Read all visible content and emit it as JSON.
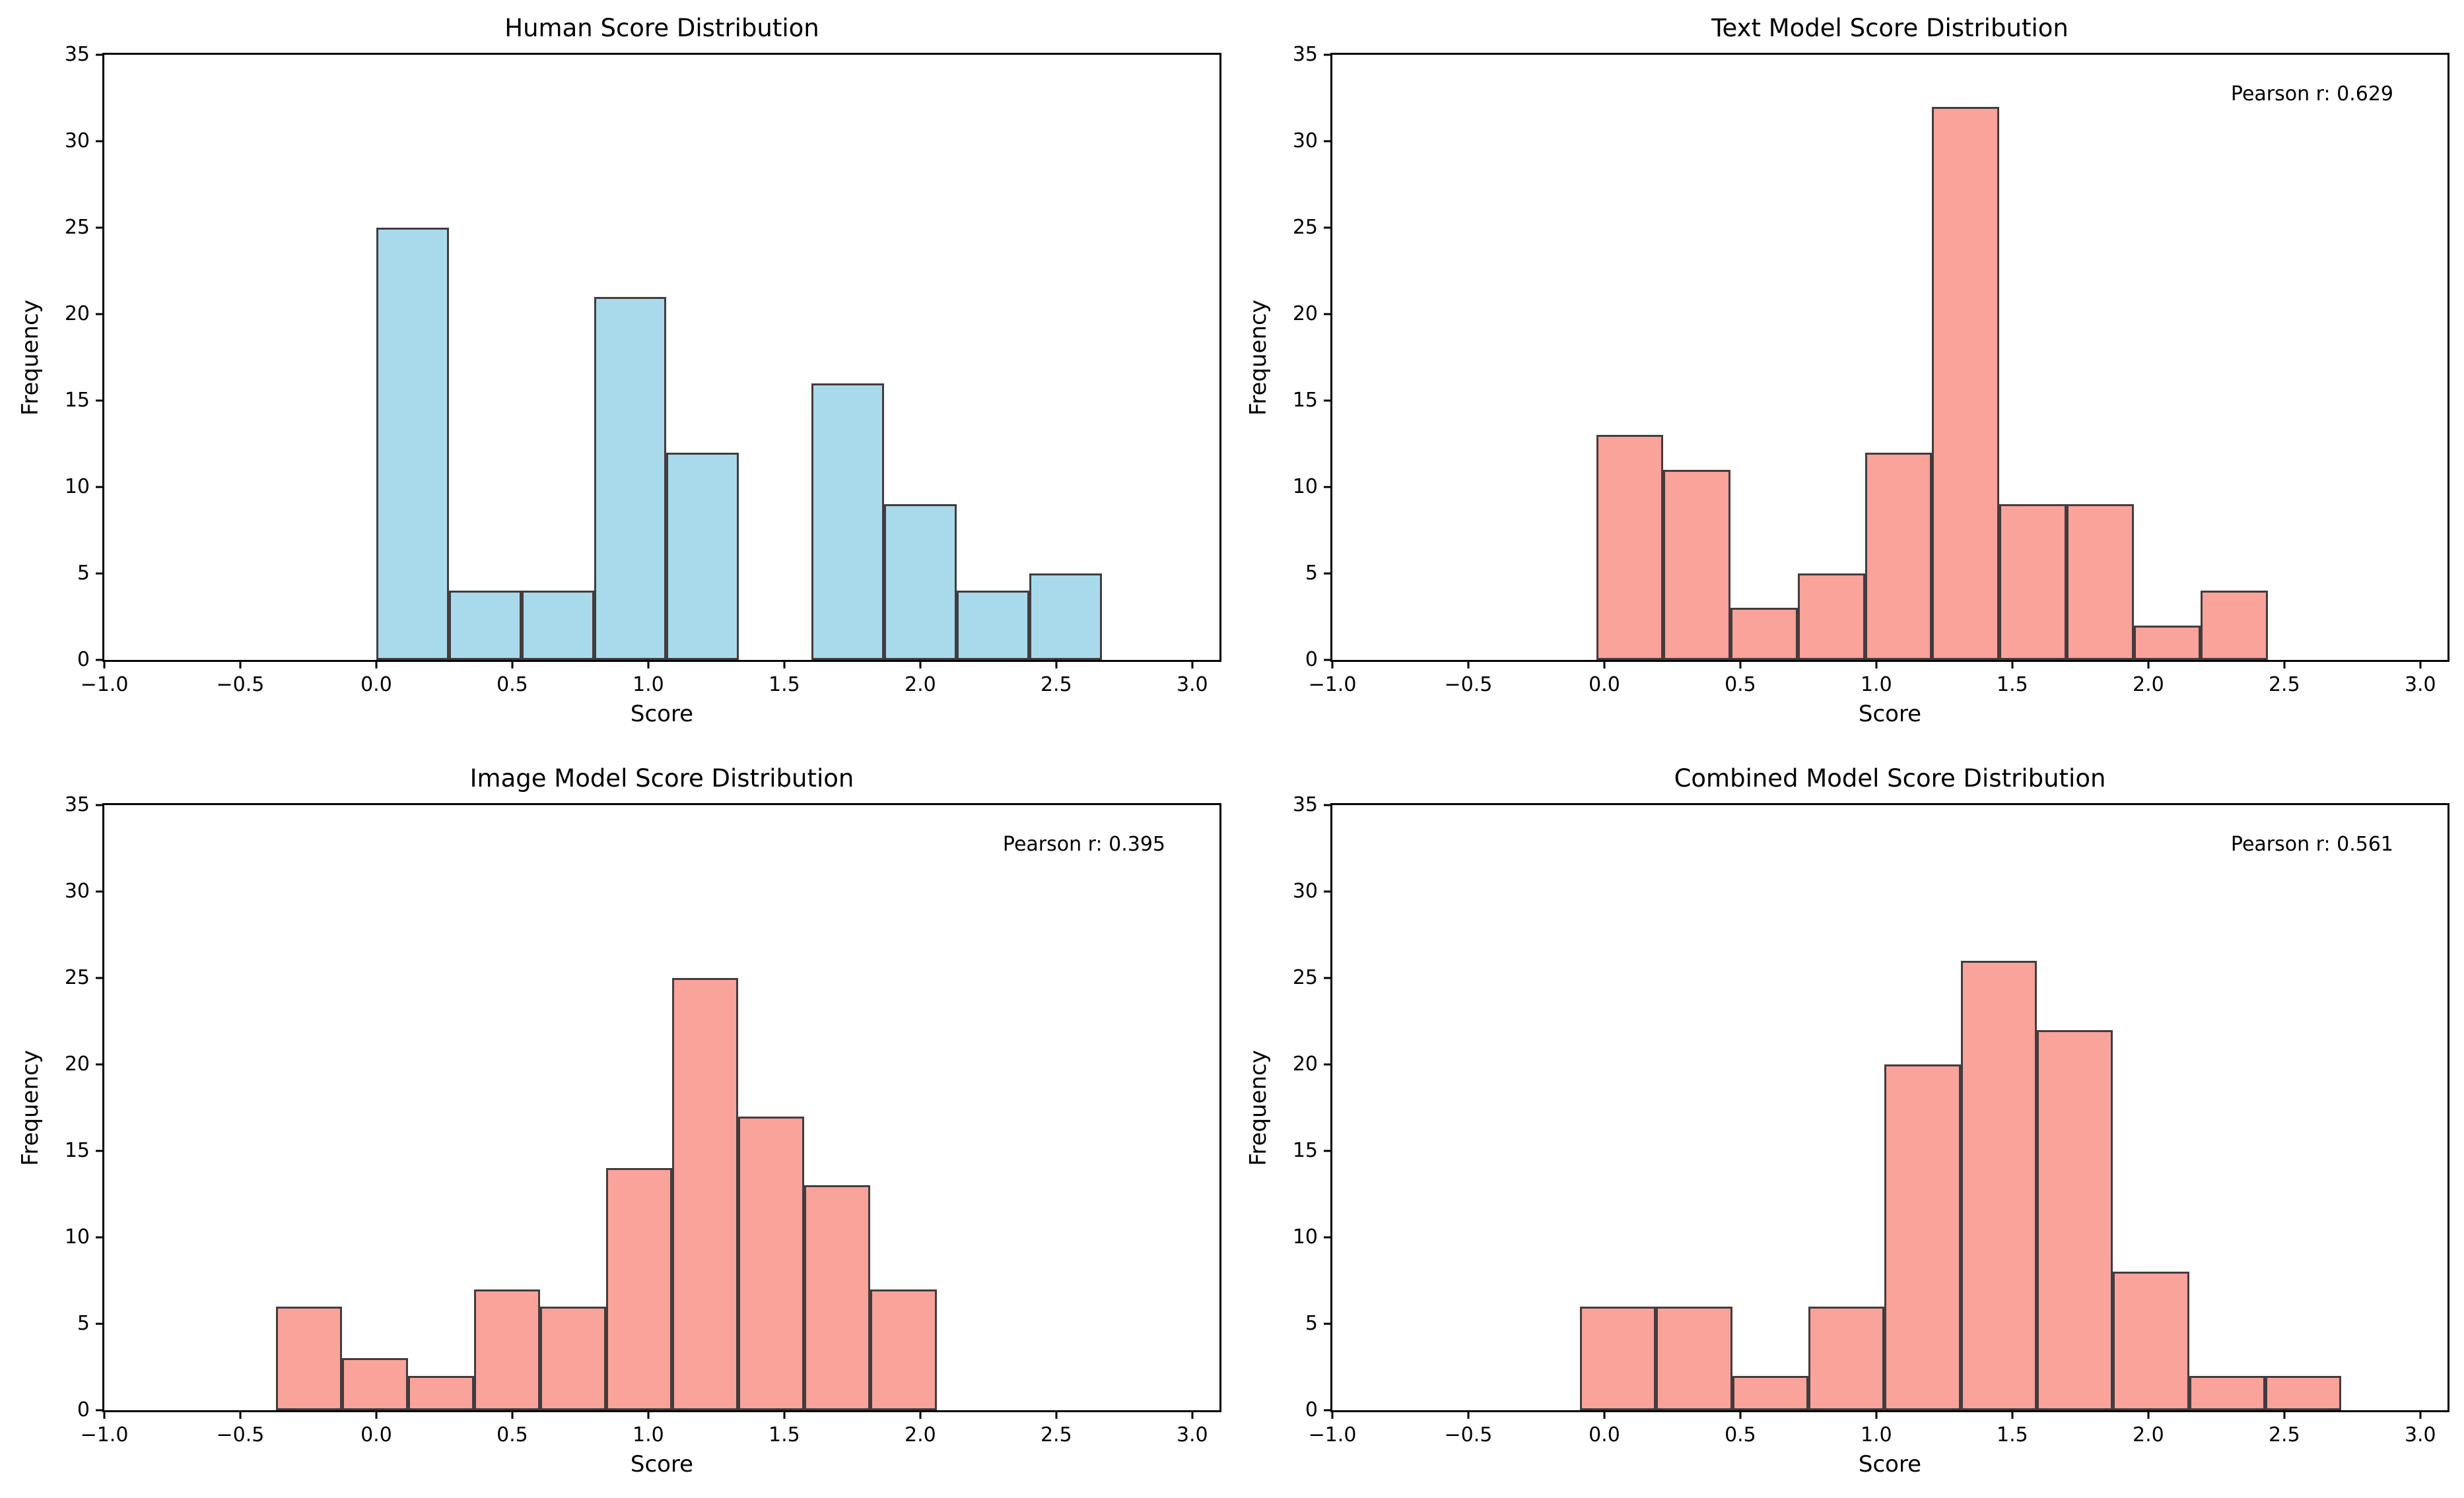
{
  "figure": {
    "background_color": "#ffffff",
    "spine_color": "#000000",
    "bar_edge_color": "#433c3e",
    "human_bar_color": "#a8daeb",
    "model_bar_color": "#f9a39b"
  },
  "axes_config": {
    "xlim": [
      -1.0,
      3.1
    ],
    "ylim": [
      0,
      35
    ],
    "xticks": [
      -1.0,
      -0.5,
      0.0,
      0.5,
      1.0,
      1.5,
      2.0,
      2.5,
      3.0
    ],
    "xtick_labels": [
      "−1.0",
      "−0.5",
      "0.0",
      "0.5",
      "1.0",
      "1.5",
      "2.0",
      "2.5",
      "3.0"
    ],
    "yticks": [
      0,
      5,
      10,
      15,
      20,
      25,
      30,
      35
    ],
    "ytick_labels": [
      "0",
      "5",
      "10",
      "15",
      "20",
      "25",
      "30",
      "35"
    ],
    "grid": false,
    "legend": "none"
  },
  "chart_data": [
    {
      "type": "bar",
      "subtype": "histogram",
      "title": "Human Score Distribution",
      "xlabel": "Score",
      "ylabel": "Frequency",
      "annotation": "",
      "bar_color": "#a8daeb",
      "bin_start": 0.0,
      "bin_width": 0.2667,
      "bin_edges": [
        0.0,
        0.2667,
        0.5333,
        0.8,
        1.0667,
        1.3333,
        1.6,
        1.8667,
        2.1333,
        2.4,
        2.6667
      ],
      "counts": [
        25,
        4,
        4,
        21,
        12,
        0,
        16,
        9,
        4,
        5
      ],
      "xlim": [
        -1.0,
        3.1
      ],
      "ylim": [
        0,
        35
      ]
    },
    {
      "type": "bar",
      "subtype": "histogram",
      "title": "Text Model Score Distribution",
      "xlabel": "Score",
      "ylabel": "Frequency",
      "annotation": "Pearson r: 0.629",
      "bar_color": "#f9a39b",
      "bin_start": -0.03,
      "bin_width": 0.247,
      "bin_edges": [
        -0.03,
        0.217,
        0.464,
        0.711,
        0.958,
        1.205,
        1.452,
        1.699,
        1.946,
        2.193,
        2.44
      ],
      "counts": [
        13,
        11,
        3,
        5,
        12,
        32,
        9,
        9,
        2,
        4
      ],
      "xlim": [
        -1.0,
        3.1
      ],
      "ylim": [
        0,
        35
      ]
    },
    {
      "type": "bar",
      "subtype": "histogram",
      "title": "Image Model Score Distribution",
      "xlabel": "Score",
      "ylabel": "Frequency",
      "annotation": "Pearson r: 0.395",
      "bar_color": "#f9a39b",
      "bin_start": -0.37,
      "bin_width": 0.243,
      "bin_edges": [
        -0.37,
        -0.127,
        0.116,
        0.359,
        0.602,
        0.845,
        1.088,
        1.331,
        1.574,
        1.817,
        2.06
      ],
      "counts": [
        6,
        3,
        2,
        7,
        6,
        14,
        25,
        17,
        13,
        7
      ],
      "xlim": [
        -1.0,
        3.1
      ],
      "ylim": [
        0,
        35
      ]
    },
    {
      "type": "bar",
      "subtype": "histogram",
      "title": "Combined Model Score Distribution",
      "xlabel": "Score",
      "ylabel": "Frequency",
      "annotation": "Pearson r: 0.561",
      "bar_color": "#f9a39b",
      "bin_start": -0.09,
      "bin_width": 0.28,
      "bin_edges": [
        -0.09,
        0.19,
        0.47,
        0.75,
        1.03,
        1.31,
        1.59,
        1.87,
        2.15,
        2.43,
        2.71
      ],
      "counts": [
        6,
        6,
        2,
        6,
        20,
        26,
        22,
        8,
        2,
        2
      ],
      "xlim": [
        -1.0,
        3.1
      ],
      "ylim": [
        0,
        35
      ]
    }
  ]
}
